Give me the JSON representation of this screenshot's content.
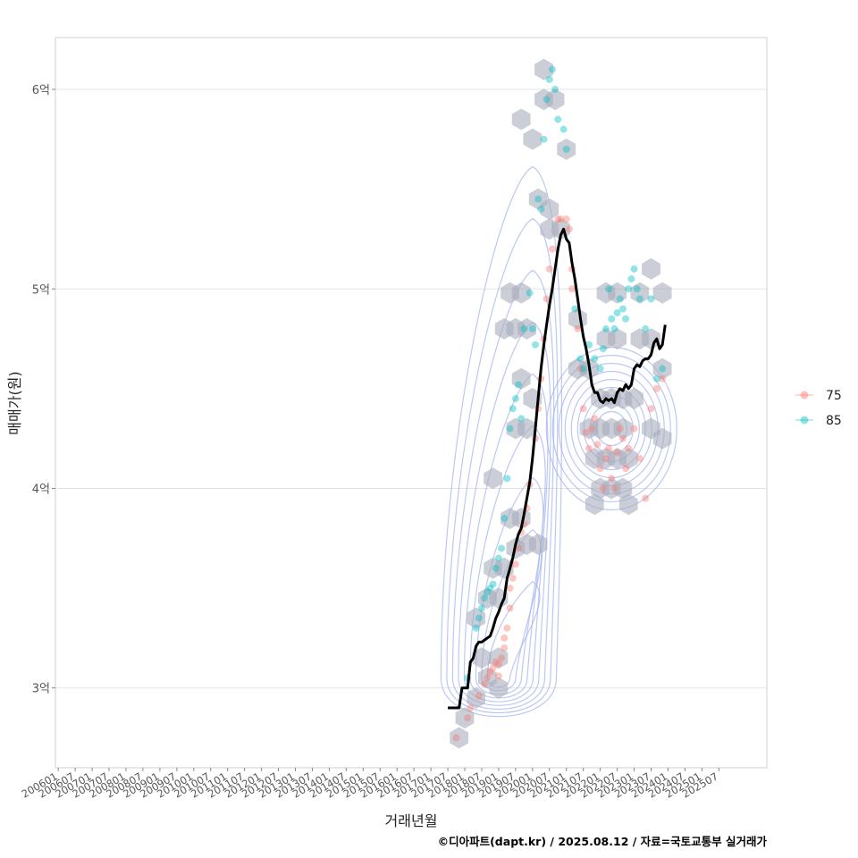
{
  "chart_data": {
    "type": "scatter",
    "xlabel": "거래년월",
    "ylabel": "매매가(원)",
    "caption": "©디아파트(dapt.kr) / 2025.08.12 / 자료=국토교통부 실거래가",
    "x_range": [
      "2005-12",
      "2026-12"
    ],
    "ylim": [
      2.6,
      6.26
    ],
    "y_unit": "억",
    "y_ticks": [
      {
        "value": 3,
        "label": "3억"
      },
      {
        "value": 4,
        "label": "4억"
      },
      {
        "value": 5,
        "label": "5억"
      },
      {
        "value": 6,
        "label": "6억"
      }
    ],
    "x_ticks": [
      "200601",
      "200607",
      "200701",
      "200707",
      "200801",
      "200807",
      "200901",
      "200907",
      "201001",
      "201007",
      "201101",
      "201107",
      "201201",
      "201207",
      "201301",
      "201307",
      "201401",
      "201407",
      "201501",
      "201507",
      "201601",
      "201607",
      "201701",
      "201707",
      "201801",
      "201807",
      "201901",
      "201907",
      "202001",
      "202007",
      "202101",
      "202107",
      "202201",
      "202207",
      "202301",
      "202307",
      "202401",
      "202407",
      "202501",
      "202507"
    ],
    "grid": true,
    "legend": {
      "position": "right",
      "entries": [
        {
          "name": "75",
          "color": "#F8766D"
        },
        {
          "name": "85",
          "color": "#00BFC4"
        }
      ]
    },
    "trend_line": {
      "color": "#000000",
      "points": [
        [
          "2017-07",
          2.9
        ],
        [
          "2017-08",
          2.9
        ],
        [
          "2017-09",
          2.9
        ],
        [
          "2017-10",
          2.9
        ],
        [
          "2017-11",
          2.9
        ],
        [
          "2017-12",
          3.0
        ],
        [
          "2018-01",
          3.0
        ],
        [
          "2018-02",
          3.0
        ],
        [
          "2018-03",
          3.13
        ],
        [
          "2018-04",
          3.15
        ],
        [
          "2018-05",
          3.21
        ],
        [
          "2018-06",
          3.23
        ],
        [
          "2018-07",
          3.23
        ],
        [
          "2018-08",
          3.24
        ],
        [
          "2018-09",
          3.25
        ],
        [
          "2018-10",
          3.26
        ],
        [
          "2018-11",
          3.3
        ],
        [
          "2018-12",
          3.35
        ],
        [
          "2019-01",
          3.38
        ],
        [
          "2019-02",
          3.42
        ],
        [
          "2019-03",
          3.45
        ],
        [
          "2019-04",
          3.55
        ],
        [
          "2019-05",
          3.6
        ],
        [
          "2019-06",
          3.65
        ],
        [
          "2019-07",
          3.72
        ],
        [
          "2019-08",
          3.77
        ],
        [
          "2019-09",
          3.8
        ],
        [
          "2019-10",
          3.87
        ],
        [
          "2019-11",
          3.95
        ],
        [
          "2019-12",
          4.03
        ],
        [
          "2020-01",
          4.15
        ],
        [
          "2020-02",
          4.3
        ],
        [
          "2020-03",
          4.45
        ],
        [
          "2020-04",
          4.6
        ],
        [
          "2020-05",
          4.72
        ],
        [
          "2020-06",
          4.82
        ],
        [
          "2020-07",
          4.92
        ],
        [
          "2020-08",
          5.0
        ],
        [
          "2020-09",
          5.1
        ],
        [
          "2020-10",
          5.2
        ],
        [
          "2020-11",
          5.27
        ],
        [
          "2020-12",
          5.3
        ],
        [
          "2021-01",
          5.25
        ],
        [
          "2021-02",
          5.23
        ],
        [
          "2021-03",
          5.13
        ],
        [
          "2021-04",
          5.05
        ],
        [
          "2021-05",
          4.95
        ],
        [
          "2021-06",
          4.85
        ],
        [
          "2021-07",
          4.76
        ],
        [
          "2021-08",
          4.7
        ],
        [
          "2021-09",
          4.62
        ],
        [
          "2021-10",
          4.52
        ],
        [
          "2021-11",
          4.48
        ],
        [
          "2021-12",
          4.48
        ],
        [
          "2022-01",
          4.44
        ],
        [
          "2022-02",
          4.43
        ],
        [
          "2022-03",
          4.45
        ],
        [
          "2022-04",
          4.44
        ],
        [
          "2022-05",
          4.45
        ],
        [
          "2022-06",
          4.43
        ],
        [
          "2022-07",
          4.48
        ],
        [
          "2022-08",
          4.5
        ],
        [
          "2022-09",
          4.49
        ],
        [
          "2022-10",
          4.52
        ],
        [
          "2022-11",
          4.5
        ],
        [
          "2022-12",
          4.52
        ],
        [
          "2023-01",
          4.6
        ],
        [
          "2023-02",
          4.62
        ],
        [
          "2023-03",
          4.61
        ],
        [
          "2023-04",
          4.64
        ],
        [
          "2023-05",
          4.65
        ],
        [
          "2023-06",
          4.65
        ],
        [
          "2023-07",
          4.67
        ],
        [
          "2023-08",
          4.73
        ],
        [
          "2023-09",
          4.75
        ],
        [
          "2023-10",
          4.7
        ],
        [
          "2023-11",
          4.72
        ],
        [
          "2023-12",
          4.82
        ]
      ]
    },
    "series": [
      {
        "name": "75",
        "color": "#F8766D",
        "points": [
          [
            "2017-10",
            2.75
          ],
          [
            "2018-02",
            2.85
          ],
          [
            "2018-03",
            2.9
          ],
          [
            "2018-06",
            2.96
          ],
          [
            "2018-08",
            3.02
          ],
          [
            "2018-09",
            3.05
          ],
          [
            "2018-10",
            3.08
          ],
          [
            "2018-11",
            3.1
          ],
          [
            "2018-12",
            3.13
          ],
          [
            "2019-01",
            3.06
          ],
          [
            "2019-01",
            3.12
          ],
          [
            "2019-02",
            3.15
          ],
          [
            "2019-03",
            3.2
          ],
          [
            "2019-03",
            3.25
          ],
          [
            "2019-04",
            3.3
          ],
          [
            "2019-05",
            3.4
          ],
          [
            "2019-05",
            3.5
          ],
          [
            "2019-06",
            3.55
          ],
          [
            "2019-07",
            3.62
          ],
          [
            "2019-08",
            3.7
          ],
          [
            "2019-09",
            3.78
          ],
          [
            "2019-10",
            3.82
          ],
          [
            "2019-11",
            3.9
          ],
          [
            "2019-12",
            4.02
          ],
          [
            "2020-02",
            4.25
          ],
          [
            "2020-03",
            4.4
          ],
          [
            "2020-04",
            4.55
          ],
          [
            "2020-05",
            4.75
          ],
          [
            "2020-06",
            4.95
          ],
          [
            "2020-07",
            5.1
          ],
          [
            "2020-08",
            5.2
          ],
          [
            "2020-10",
            5.35
          ],
          [
            "2020-11",
            5.35
          ],
          [
            "2021-01",
            5.35
          ],
          [
            "2021-02",
            5.3
          ],
          [
            "2021-03",
            5.1
          ],
          [
            "2021-03",
            5.0
          ],
          [
            "2021-05",
            4.8
          ],
          [
            "2021-06",
            4.6
          ],
          [
            "2021-07",
            4.4
          ],
          [
            "2021-08",
            4.28
          ],
          [
            "2021-09",
            4.2
          ],
          [
            "2021-10",
            4.3
          ],
          [
            "2021-11",
            4.35
          ],
          [
            "2021-12",
            4.22
          ],
          [
            "2022-01",
            4.1
          ],
          [
            "2022-02",
            4.0
          ],
          [
            "2022-03",
            4.15
          ],
          [
            "2022-04",
            4.2
          ],
          [
            "2022-05",
            4.05
          ],
          [
            "2022-06",
            4.0
          ],
          [
            "2022-07",
            4.18
          ],
          [
            "2022-08",
            4.3
          ],
          [
            "2022-09",
            4.25
          ],
          [
            "2022-10",
            4.1
          ],
          [
            "2022-11",
            4.2
          ],
          [
            "2023-01",
            4.3
          ],
          [
            "2023-03",
            4.15
          ],
          [
            "2023-05",
            3.95
          ],
          [
            "2023-07",
            4.4
          ],
          [
            "2023-09",
            4.5
          ],
          [
            "2023-11",
            4.55
          ]
        ]
      },
      {
        "name": "85",
        "color": "#00BFC4",
        "points": [
          [
            "2018-02",
            3.05
          ],
          [
            "2018-05",
            3.3
          ],
          [
            "2018-06",
            3.35
          ],
          [
            "2018-07",
            3.4
          ],
          [
            "2018-08",
            3.45
          ],
          [
            "2018-09",
            3.48
          ],
          [
            "2018-10",
            3.5
          ],
          [
            "2018-11",
            3.52
          ],
          [
            "2018-12",
            3.6
          ],
          [
            "2019-01",
            3.65
          ],
          [
            "2019-02",
            3.7
          ],
          [
            "2019-03",
            3.85
          ],
          [
            "2019-04",
            4.05
          ],
          [
            "2019-05",
            4.3
          ],
          [
            "2019-06",
            4.4
          ],
          [
            "2019-07",
            4.45
          ],
          [
            "2019-08",
            4.52
          ],
          [
            "2019-09",
            4.35
          ],
          [
            "2019-10",
            4.8
          ],
          [
            "2019-12",
            4.98
          ],
          [
            "2020-01",
            4.8
          ],
          [
            "2020-02",
            4.72
          ],
          [
            "2020-03",
            5.45
          ],
          [
            "2020-04",
            5.4
          ],
          [
            "2020-05",
            5.75
          ],
          [
            "2020-06",
            5.95
          ],
          [
            "2020-07",
            6.05
          ],
          [
            "2020-08",
            6.1
          ],
          [
            "2020-09",
            6.0
          ],
          [
            "2020-10",
            5.85
          ],
          [
            "2020-12",
            5.8
          ],
          [
            "2021-01",
            5.7
          ],
          [
            "2021-04",
            4.9
          ],
          [
            "2021-06",
            4.65
          ],
          [
            "2021-07",
            4.6
          ],
          [
            "2021-09",
            4.72
          ],
          [
            "2021-11",
            4.65
          ],
          [
            "2022-01",
            4.6
          ],
          [
            "2022-02",
            4.7
          ],
          [
            "2022-03",
            4.8
          ],
          [
            "2022-04",
            5.0
          ],
          [
            "2022-05",
            4.85
          ],
          [
            "2022-06",
            4.8
          ],
          [
            "2022-07",
            4.88
          ],
          [
            "2022-08",
            4.95
          ],
          [
            "2022-09",
            4.9
          ],
          [
            "2022-10",
            4.85
          ],
          [
            "2022-11",
            5.0
          ],
          [
            "2022-12",
            5.05
          ],
          [
            "2023-01",
            5.1
          ],
          [
            "2023-02",
            5.0
          ],
          [
            "2023-03",
            4.95
          ],
          [
            "2023-05",
            4.8
          ],
          [
            "2023-07",
            4.95
          ],
          [
            "2023-09",
            4.55
          ],
          [
            "2023-11",
            4.6
          ]
        ]
      }
    ],
    "hex_bins": [
      [
        "2017-11",
        2.75
      ],
      [
        "2018-01",
        2.85
      ],
      [
        "2018-05",
        2.95
      ],
      [
        "2018-09",
        3.05
      ],
      [
        "2019-01",
        3.0
      ],
      [
        "2018-07",
        3.15
      ],
      [
        "2019-01",
        3.15
      ],
      [
        "2018-05",
        3.35
      ],
      [
        "2018-09",
        3.45
      ],
      [
        "2019-01",
        3.45
      ],
      [
        "2018-11",
        3.6
      ],
      [
        "2019-03",
        3.6
      ],
      [
        "2019-07",
        3.7
      ],
      [
        "2019-11",
        3.72
      ],
      [
        "2020-03",
        3.72
      ],
      [
        "2019-05",
        3.85
      ],
      [
        "2019-09",
        3.85
      ],
      [
        "2018-11",
        4.05
      ],
      [
        "2019-07",
        4.3
      ],
      [
        "2019-11",
        4.3
      ],
      [
        "2019-09",
        4.55
      ],
      [
        "2020-01",
        4.45
      ],
      [
        "2019-03",
        4.8
      ],
      [
        "2019-07",
        4.8
      ],
      [
        "2019-11",
        4.8
      ],
      [
        "2019-05",
        4.98
      ],
      [
        "2019-09",
        4.98
      ],
      [
        "2020-07",
        5.3
      ],
      [
        "2020-11",
        5.3
      ],
      [
        "2020-03",
        5.45
      ],
      [
        "2020-07",
        5.4
      ],
      [
        "2019-09",
        5.85
      ],
      [
        "2020-01",
        5.75
      ],
      [
        "2020-05",
        5.95
      ],
      [
        "2020-09",
        5.95
      ],
      [
        "2020-05",
        6.1
      ],
      [
        "2021-01",
        5.7
      ],
      [
        "2021-05",
        4.85
      ],
      [
        "2021-05",
        4.6
      ],
      [
        "2021-09",
        4.6
      ],
      [
        "2021-09",
        4.3
      ],
      [
        "2022-01",
        4.3
      ],
      [
        "2022-05",
        4.3
      ],
      [
        "2022-09",
        4.3
      ],
      [
        "2021-11",
        4.15
      ],
      [
        "2022-03",
        4.15
      ],
      [
        "2022-07",
        4.15
      ],
      [
        "2022-11",
        4.15
      ],
      [
        "2022-01",
        4.0
      ],
      [
        "2022-05",
        4.0
      ],
      [
        "2022-09",
        4.0
      ],
      [
        "2021-11",
        3.92
      ],
      [
        "2022-11",
        3.92
      ],
      [
        "2022-01",
        4.45
      ],
      [
        "2022-05",
        4.45
      ],
      [
        "2022-09",
        4.45
      ],
      [
        "2023-01",
        4.45
      ],
      [
        "2022-03",
        4.75
      ],
      [
        "2022-07",
        4.75
      ],
      [
        "2022-03",
        4.98
      ],
      [
        "2022-07",
        4.98
      ],
      [
        "2023-03",
        4.98
      ],
      [
        "2023-11",
        4.98
      ],
      [
        "2023-07",
        5.1
      ],
      [
        "2023-11",
        4.6
      ],
      [
        "2023-07",
        4.75
      ],
      [
        "2023-03",
        4.75
      ],
      [
        "2023-07",
        4.3
      ],
      [
        "2023-11",
        4.25
      ]
    ],
    "density_contours": {
      "color": "#9FB0F0",
      "centers": [
        {
          "x": "2019-01",
          "y": 3.05
        },
        {
          "x": "2022-05",
          "y": 4.3
        }
      ]
    }
  }
}
